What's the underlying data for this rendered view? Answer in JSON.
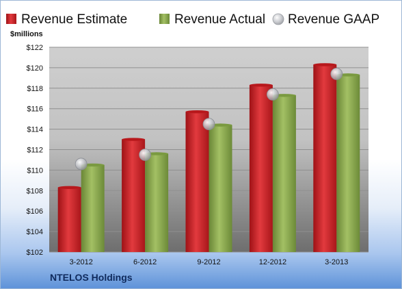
{
  "company": "NTELOS Holdings",
  "chart_data": {
    "type": "bar",
    "title": "",
    "ylabel": "$millions",
    "xlabel": "",
    "categories": [
      "3-2012",
      "6-2012",
      "9-2012",
      "12-2012",
      "3-2013"
    ],
    "series": [
      {
        "name": "Revenue Estimate",
        "type": "bar",
        "color": "#d42b2f",
        "values": [
          108.3,
          113.0,
          115.7,
          118.3,
          120.3
        ]
      },
      {
        "name": "Revenue Actual",
        "type": "bar",
        "color": "#8aa84e",
        "values": [
          110.5,
          111.6,
          114.4,
          117.3,
          119.3
        ]
      },
      {
        "name": "Revenue GAAP",
        "type": "marker",
        "color": "#b9bcc2",
        "values": [
          110.6,
          111.5,
          114.5,
          117.4,
          119.4
        ]
      }
    ],
    "ylim": [
      102,
      122
    ],
    "yticks": [
      102,
      104,
      106,
      108,
      110,
      112,
      114,
      116,
      118,
      120,
      122
    ],
    "ytick_labels": [
      "$102",
      "$104",
      "$106",
      "$108",
      "$110",
      "$112",
      "$114",
      "$116",
      "$118",
      "$120",
      "$122"
    ],
    "grid": true,
    "legend": "top"
  }
}
